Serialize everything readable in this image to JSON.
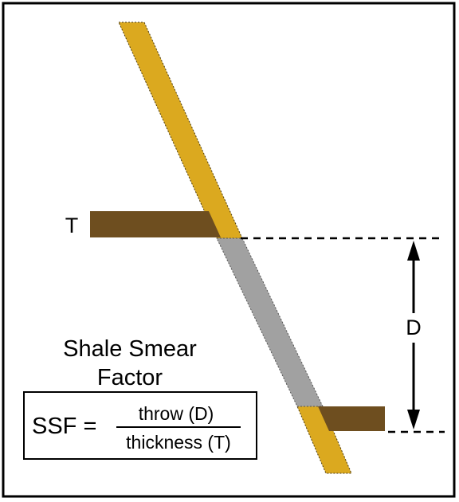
{
  "diagram": {
    "shale_label": "T",
    "throw_label": "D",
    "title_line1": "Shale Smear",
    "title_line2": "Factor",
    "formula": {
      "lhs": "SSF =",
      "numerator": "throw (D)",
      "denominator": "thickness (T)"
    }
  },
  "colors": {
    "fault_zone": "#DBA91F",
    "shale_bed": "#6E4E1F",
    "smear": "#A1A1A1",
    "frame": "#000000"
  }
}
